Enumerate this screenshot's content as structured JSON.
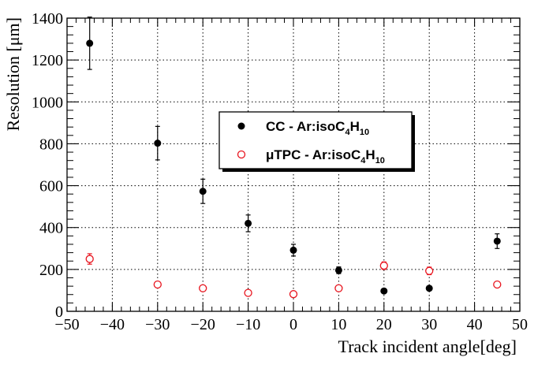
{
  "chart_data": {
    "type": "scatter",
    "xlabel": "Track incident angle[deg]",
    "ylabel": "Resolution [μm]",
    "xlim": [
      -50,
      50
    ],
    "ylim": [
      0,
      1400
    ],
    "x_ticks": [
      -50,
      -40,
      -30,
      -20,
      -10,
      0,
      10,
      20,
      30,
      40,
      50
    ],
    "y_ticks": [
      0,
      200,
      400,
      600,
      800,
      1000,
      1200,
      1400
    ],
    "grid": true,
    "legend_position": "center",
    "series": [
      {
        "name": "CC - Ar:isoC4H10",
        "marker": "filled-circle",
        "color": "#000000",
        "points": [
          {
            "x": -45,
            "y": 1280,
            "err": 125
          },
          {
            "x": -30,
            "y": 803,
            "err": 80
          },
          {
            "x": -20,
            "y": 573,
            "err": 58
          },
          {
            "x": -10,
            "y": 420,
            "err": 40
          },
          {
            "x": 0,
            "y": 292,
            "err": 28
          },
          {
            "x": 10,
            "y": 196,
            "err": 16
          },
          {
            "x": 20,
            "y": 97,
            "err": 0
          },
          {
            "x": 30,
            "y": 110,
            "err": 0
          },
          {
            "x": 45,
            "y": 335,
            "err": 35
          }
        ]
      },
      {
        "name": "μTPC - Ar:isoC4H10",
        "marker": "open-circle",
        "color": "#e8141e",
        "points": [
          {
            "x": -45,
            "y": 250,
            "err": 25
          },
          {
            "x": -30,
            "y": 128,
            "err": 0
          },
          {
            "x": -20,
            "y": 110,
            "err": 0
          },
          {
            "x": -10,
            "y": 88,
            "err": 0
          },
          {
            "x": 0,
            "y": 82,
            "err": 0
          },
          {
            "x": 10,
            "y": 110,
            "err": 0
          },
          {
            "x": 20,
            "y": 218,
            "err": 18
          },
          {
            "x": 30,
            "y": 193,
            "err": 18
          },
          {
            "x": 45,
            "y": 128,
            "err": 0
          }
        ]
      }
    ],
    "legend": {
      "entries": [
        {
          "prefix": "CC - Ar:isoC",
          "sub1": "4",
          "mid": "H",
          "sub2": "10"
        },
        {
          "prefix": "μTPC - Ar:isoC",
          "sub1": "4",
          "mid": "H",
          "sub2": "10"
        }
      ]
    }
  }
}
